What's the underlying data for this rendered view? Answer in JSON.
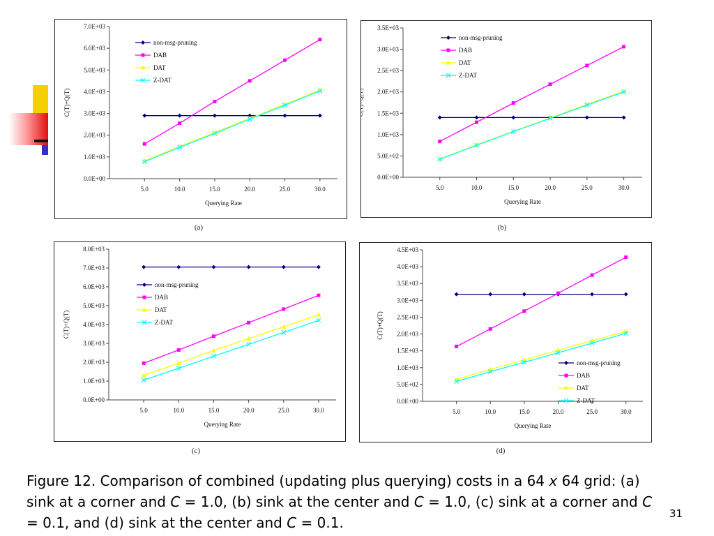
{
  "caption": {
    "part1": "Figure 12. Comparison of combined (updating plus  querying) costs in a 64 ",
    "times": "x",
    "part2": " 64 grid: (a) sink at a corner and ",
    "c1": "C",
    "part3": " = 1.0, (b) sink at the center and ",
    "c2": "C",
    "part4": " = 1.0, (c) sink at a corner and ",
    "c3": "C",
    "part5": " = 0.1, and (d) sink at the center and ",
    "c4": "C",
    "part6": " = 0.1."
  },
  "page_number": "31",
  "panel_labels": [
    "(a)",
    "(b)",
    "(c)",
    "(d)"
  ],
  "colors": {
    "non-msg-pruning": "#000080",
    "DAB": "#ff00ff",
    "DAT": "#ffff00",
    "Z-DAT": "#00ffff"
  },
  "chart_data": [
    {
      "type": "line",
      "xlabel": "Querying Rate",
      "ylabel": "C(T)+Q(T)",
      "categories": [
        "5.0",
        "10.0",
        "15.0",
        "20.0",
        "25.0",
        "30.0"
      ],
      "ylim": [
        0,
        7000
      ],
      "yticks": [
        "0.0E+00",
        "1.0E+03",
        "2.0E+03",
        "3.0E+03",
        "4.0E+03",
        "5.0E+03",
        "6.0E+03",
        "7.0E+03"
      ],
      "legend_position": "top-left",
      "series": [
        {
          "name": "non-msg-pruning",
          "values": [
            2900,
            2900,
            2900,
            2900,
            2900,
            2900
          ]
        },
        {
          "name": "DAB",
          "values": [
            1600,
            2550,
            3550,
            4500,
            5450,
            6400
          ]
        },
        {
          "name": "DAT",
          "values": [
            820,
            1480,
            2120,
            2780,
            3420,
            4080
          ]
        },
        {
          "name": "Z-DAT",
          "values": [
            780,
            1440,
            2080,
            2740,
            3380,
            4040
          ]
        }
      ]
    },
    {
      "type": "line",
      "xlabel": "Querying Rate",
      "ylabel": "C(T)+Q(T)",
      "categories": [
        "5.0",
        "10.0",
        "15.0",
        "20.0",
        "25.0",
        "30.0"
      ],
      "ylim": [
        0,
        3500
      ],
      "yticks": [
        "0.0E+00",
        "5.0E+02",
        "1.0E+03",
        "1.5E+03",
        "2.0E+03",
        "2.5E+03",
        "3.0E+03",
        "3.5E+03"
      ],
      "legend_position": "top-left",
      "series": [
        {
          "name": "non-msg-pruning",
          "values": [
            1400,
            1400,
            1400,
            1400,
            1400,
            1400
          ]
        },
        {
          "name": "DAB",
          "values": [
            840,
            1290,
            1740,
            2180,
            2620,
            3060
          ]
        },
        {
          "name": "DAT",
          "values": [
            430,
            760,
            1080,
            1390,
            1710,
            2020
          ]
        },
        {
          "name": "Z-DAT",
          "values": [
            420,
            750,
            1070,
            1380,
            1690,
            2000
          ]
        }
      ]
    },
    {
      "type": "line",
      "xlabel": "Querying Rate",
      "ylabel": "C(T)+Q(T)",
      "categories": [
        "5.0",
        "10.0",
        "15.0",
        "20.0",
        "25.0",
        "30.0"
      ],
      "ylim": [
        0,
        8000
      ],
      "yticks": [
        "0.0E+00",
        "1.0E+03",
        "2.0E+03",
        "3.0E+03",
        "4.0E+03",
        "5.0E+03",
        "6.0E+03",
        "7.0E+03",
        "8.0E+03"
      ],
      "legend_position": "top-left",
      "series": [
        {
          "name": "non-msg-pruning",
          "values": [
            7050,
            7050,
            7050,
            7050,
            7050,
            7050
          ]
        },
        {
          "name": "DAB",
          "values": [
            1950,
            2650,
            3380,
            4100,
            4820,
            5550
          ]
        },
        {
          "name": "DAT",
          "values": [
            1300,
            1950,
            2620,
            3250,
            3880,
            4520
          ]
        },
        {
          "name": "Z-DAT",
          "values": [
            1050,
            1680,
            2320,
            2950,
            3580,
            4220
          ]
        }
      ]
    },
    {
      "type": "line",
      "xlabel": "Querying Rate",
      "ylabel": "C(T)+Q(T)",
      "categories": [
        "5.0",
        "10.0",
        "15.0",
        "20.0",
        "25.0",
        "30.0"
      ],
      "ylim": [
        0,
        4500
      ],
      "yticks": [
        "0.0E+00",
        "5.0E+02",
        "1.0E+03",
        "1.5E+03",
        "2.0E+03",
        "2.5E+03",
        "3.0E+03",
        "3.5E+03",
        "4.0E+03",
        "4.5E+03"
      ],
      "legend_position": "bottom-right",
      "series": [
        {
          "name": "non-msg-pruning",
          "values": [
            3180,
            3180,
            3180,
            3180,
            3180,
            3180
          ]
        },
        {
          "name": "DAB",
          "values": [
            1630,
            2150,
            2680,
            3210,
            3750,
            4280
          ]
        },
        {
          "name": "DAT",
          "values": [
            650,
            950,
            1230,
            1520,
            1800,
            2080
          ]
        },
        {
          "name": "Z-DAT",
          "values": [
            590,
            880,
            1160,
            1440,
            1730,
            2020
          ]
        }
      ]
    }
  ]
}
